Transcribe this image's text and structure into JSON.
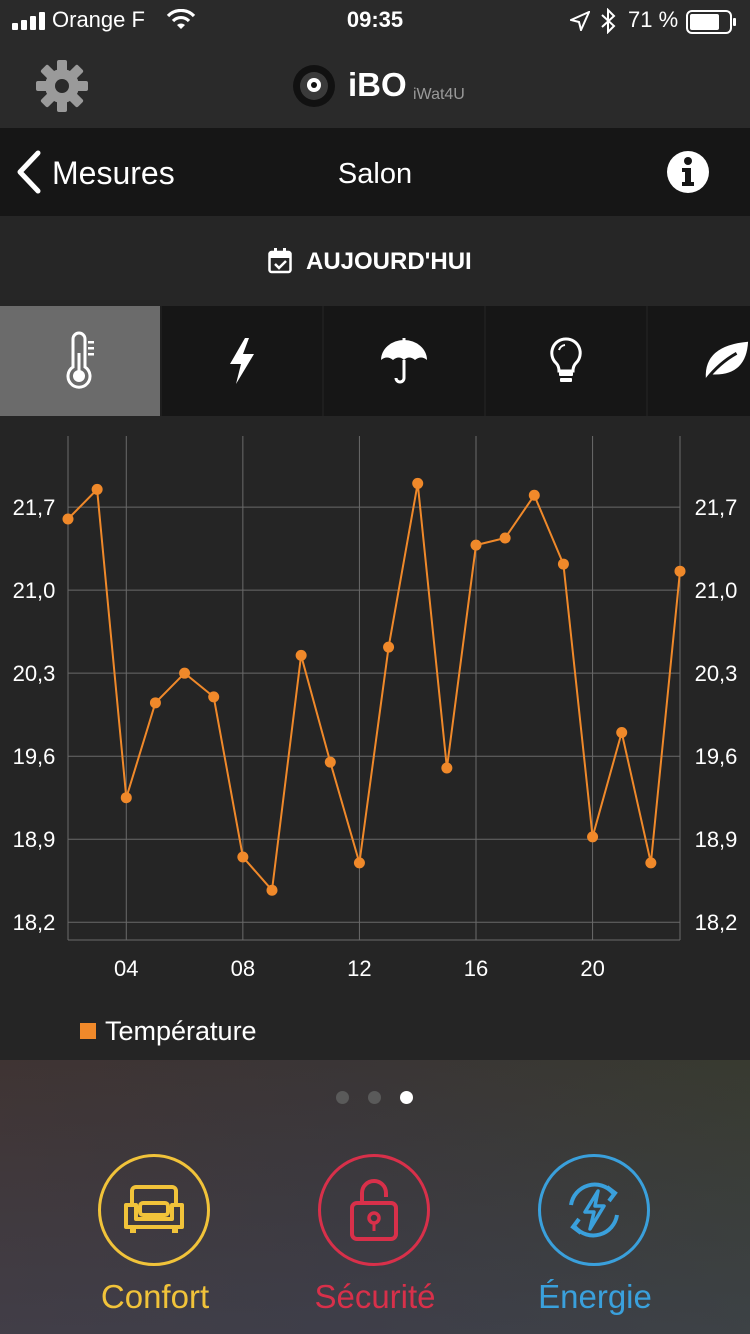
{
  "status_bar": {
    "carrier": "Orange F",
    "time": "09:35",
    "battery": "71 %"
  },
  "app_bar": {
    "brand": "iBO",
    "brand_sub": "iWat4U",
    "icons": [
      "gear-icon",
      "ibo-logo-icon"
    ]
  },
  "nav": {
    "back_label": "Mesures",
    "title": "Salon",
    "icons": [
      "chevron-left-icon",
      "info-icon"
    ]
  },
  "date_filter": {
    "label": "AUJOURD'HUI",
    "icon": "calendar-icon"
  },
  "tabs": [
    {
      "icon": "thermometer-icon",
      "active": true
    },
    {
      "icon": "lightning-icon",
      "active": false
    },
    {
      "icon": "umbrella-icon",
      "active": false
    },
    {
      "icon": "lightbulb-icon",
      "active": false
    },
    {
      "icon": "leaf-icon",
      "active": false
    }
  ],
  "chart_data": {
    "type": "line",
    "x": [
      2,
      3,
      4,
      5,
      6,
      7,
      8,
      9,
      10,
      11,
      12,
      13,
      14,
      15,
      16,
      17,
      18,
      19,
      20,
      21,
      22,
      23
    ],
    "series": [
      {
        "name": "Température",
        "values": [
          21.6,
          21.85,
          19.25,
          20.05,
          20.3,
          20.1,
          18.75,
          18.47,
          20.45,
          19.55,
          18.7,
          20.52,
          21.9,
          19.5,
          21.38,
          21.44,
          21.8,
          21.22,
          18.92,
          19.8,
          18.7,
          21.16
        ]
      }
    ],
    "x_ticks": [
      "04",
      "08",
      "12",
      "16",
      "20"
    ],
    "x_tick_values": [
      4,
      8,
      12,
      16,
      20
    ],
    "y_ticks": [
      "18,2",
      "18,9",
      "19,6",
      "20,3",
      "21,0",
      "21,7"
    ],
    "y_tick_values": [
      18.2,
      18.9,
      19.6,
      20.3,
      21.0,
      21.7
    ],
    "xlim": [
      2,
      23
    ],
    "ylim": [
      18.05,
      22.3
    ],
    "grid": true,
    "legend": "bottom-left",
    "line_color": "#f0892a"
  },
  "pager": {
    "count": 3,
    "active": 2
  },
  "bottom_nav": [
    {
      "label": "Confort",
      "color": "#f1c33a",
      "icon": "sofa-icon"
    },
    {
      "label": "Sécurité",
      "color": "#d8304a",
      "icon": "unlocked-padlock-icon"
    },
    {
      "label": "Énergie",
      "color": "#3aa0dc",
      "icon": "energy-cycle-icon"
    }
  ]
}
